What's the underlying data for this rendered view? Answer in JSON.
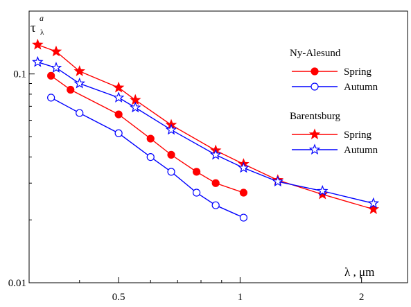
{
  "chart_data": {
    "type": "line",
    "xscale": "log",
    "yscale": "log",
    "xlim": [
      0.3,
      2.6
    ],
    "ylim": [
      0.01,
      0.2
    ],
    "x_ticks": [
      {
        "value": 0.5,
        "label": "0.5"
      },
      {
        "value": 1,
        "label": "1"
      },
      {
        "value": 2,
        "label": "2"
      }
    ],
    "y_ticks": [
      {
        "value": 0.01,
        "label": "0.01"
      },
      {
        "value": 0.1,
        "label": "0.1"
      }
    ],
    "ylabel": {
      "main": "τ",
      "sup": "a",
      "sub": "λ"
    },
    "xlabel": "λ , μm",
    "legend": {
      "placement": "top-right",
      "groups": [
        {
          "title": "Ny-Alesund",
          "entries": [
            {
              "label": "Spring",
              "series_index": 0
            },
            {
              "label": "Autumn",
              "series_index": 1
            }
          ]
        },
        {
          "title": "Barentsburg",
          "entries": [
            {
              "label": "Spring",
              "series_index": 2
            },
            {
              "label": "Autumn",
              "series_index": 3
            }
          ]
        }
      ]
    },
    "series": [
      {
        "group": "Ny-Alesund",
        "name": "Spring",
        "color": "#ff0000",
        "marker": "circle",
        "filled": true,
        "x": [
          0.34,
          0.38,
          0.5,
          0.6,
          0.675,
          0.78,
          0.87,
          1.02
        ],
        "y": [
          0.098,
          0.084,
          0.064,
          0.049,
          0.041,
          0.034,
          0.03,
          0.027
        ]
      },
      {
        "group": "Ny-Alesund",
        "name": "Autumn",
        "color": "#0000ff",
        "marker": "circle",
        "filled": false,
        "x": [
          0.34,
          0.4,
          0.5,
          0.6,
          0.675,
          0.78,
          0.87,
          1.02
        ],
        "y": [
          0.077,
          0.065,
          0.052,
          0.04,
          0.034,
          0.027,
          0.0235,
          0.0205
        ]
      },
      {
        "group": "Barentsburg",
        "name": "Spring",
        "color": "#ff0000",
        "marker": "star",
        "filled": true,
        "x": [
          0.315,
          0.35,
          0.4,
          0.5,
          0.55,
          0.675,
          0.87,
          1.02,
          1.24,
          1.6,
          2.14
        ],
        "y": [
          0.138,
          0.128,
          0.103,
          0.086,
          0.075,
          0.057,
          0.043,
          0.037,
          0.031,
          0.0265,
          0.0225
        ]
      },
      {
        "group": "Barentsburg",
        "name": "Autumn",
        "color": "#0000ff",
        "marker": "star",
        "filled": false,
        "x": [
          0.315,
          0.35,
          0.4,
          0.5,
          0.55,
          0.675,
          0.87,
          1.02,
          1.24,
          1.6,
          2.14
        ],
        "y": [
          0.114,
          0.107,
          0.09,
          0.077,
          0.069,
          0.054,
          0.041,
          0.0355,
          0.0305,
          0.0275,
          0.024
        ]
      }
    ]
  }
}
